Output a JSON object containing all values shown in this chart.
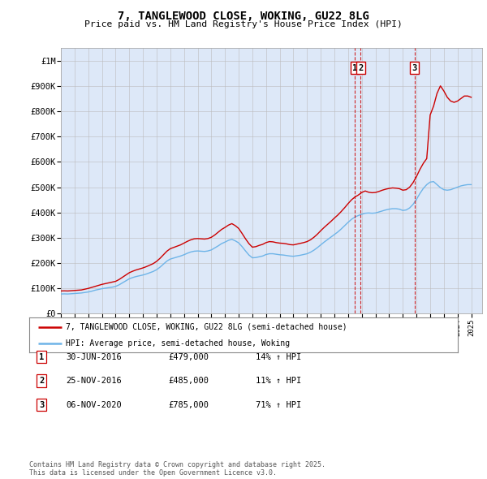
{
  "title": "7, TANGLEWOOD CLOSE, WOKING, GU22 8LG",
  "subtitle": "Price paid vs. HM Land Registry's House Price Index (HPI)",
  "hpi_color": "#6eb4e8",
  "price_color": "#cc0000",
  "annotation_color": "#cc0000",
  "background_color": "#dde8f8",
  "ylim": [
    0,
    1050000
  ],
  "yticks": [
    0,
    100000,
    200000,
    300000,
    400000,
    500000,
    600000,
    700000,
    800000,
    900000,
    1000000
  ],
  "ylabel_map": [
    "£0",
    "£100K",
    "£200K",
    "£300K",
    "£400K",
    "£500K",
    "£600K",
    "£700K",
    "£800K",
    "£900K",
    "£1M"
  ],
  "xlim_start": 1995.0,
  "xlim_end": 2025.8,
  "legend_house": "7, TANGLEWOOD CLOSE, WOKING, GU22 8LG (semi-detached house)",
  "legend_hpi": "HPI: Average price, semi-detached house, Woking",
  "transactions": [
    {
      "label": "1",
      "date": "30-JUN-2016",
      "price": "£479,000",
      "hpi": "14% ↑ HPI",
      "x": 2016.5
    },
    {
      "label": "2",
      "date": "25-NOV-2016",
      "price": "£485,000",
      "hpi": "11% ↑ HPI",
      "x": 2016.92
    },
    {
      "label": "3",
      "date": "06-NOV-2020",
      "price": "£785,000",
      "hpi": "71% ↑ HPI",
      "x": 2020.85
    }
  ],
  "footer": "Contains HM Land Registry data © Crown copyright and database right 2025.\nThis data is licensed under the Open Government Licence v3.0.",
  "hpi_data_x": [
    1995.0,
    1995.25,
    1995.5,
    1995.75,
    1996.0,
    1996.25,
    1996.5,
    1996.75,
    1997.0,
    1997.25,
    1997.5,
    1997.75,
    1998.0,
    1998.25,
    1998.5,
    1998.75,
    1999.0,
    1999.25,
    1999.5,
    1999.75,
    2000.0,
    2000.25,
    2000.5,
    2000.75,
    2001.0,
    2001.25,
    2001.5,
    2001.75,
    2002.0,
    2002.25,
    2002.5,
    2002.75,
    2003.0,
    2003.25,
    2003.5,
    2003.75,
    2004.0,
    2004.25,
    2004.5,
    2004.75,
    2005.0,
    2005.25,
    2005.5,
    2005.75,
    2006.0,
    2006.25,
    2006.5,
    2006.75,
    2007.0,
    2007.25,
    2007.5,
    2007.75,
    2008.0,
    2008.25,
    2008.5,
    2008.75,
    2009.0,
    2009.25,
    2009.5,
    2009.75,
    2010.0,
    2010.25,
    2010.5,
    2010.75,
    2011.0,
    2011.25,
    2011.5,
    2011.75,
    2012.0,
    2012.25,
    2012.5,
    2012.75,
    2013.0,
    2013.25,
    2013.5,
    2013.75,
    2014.0,
    2014.25,
    2014.5,
    2014.75,
    2015.0,
    2015.25,
    2015.5,
    2015.75,
    2016.0,
    2016.25,
    2016.5,
    2016.75,
    2017.0,
    2017.25,
    2017.5,
    2017.75,
    2018.0,
    2018.25,
    2018.5,
    2018.75,
    2019.0,
    2019.25,
    2019.5,
    2019.75,
    2020.0,
    2020.25,
    2020.5,
    2020.75,
    2021.0,
    2021.25,
    2021.5,
    2021.75,
    2022.0,
    2022.25,
    2022.5,
    2022.75,
    2023.0,
    2023.25,
    2023.5,
    2023.75,
    2024.0,
    2024.25,
    2024.5,
    2024.75,
    2025.0
  ],
  "hpi_data_y": [
    78000,
    78500,
    78000,
    79000,
    80000,
    81000,
    82000,
    84000,
    86000,
    89000,
    93000,
    96000,
    99000,
    101000,
    103000,
    105000,
    108000,
    114000,
    122000,
    130000,
    138000,
    143000,
    147000,
    150000,
    153000,
    157000,
    162000,
    167000,
    174000,
    184000,
    196000,
    208000,
    216000,
    220000,
    224000,
    228000,
    233000,
    239000,
    244000,
    247000,
    248000,
    247000,
    246000,
    248000,
    252000,
    260000,
    268000,
    277000,
    283000,
    290000,
    294000,
    288000,
    280000,
    265000,
    248000,
    232000,
    221000,
    222000,
    225000,
    228000,
    234000,
    237000,
    237000,
    235000,
    233000,
    232000,
    230000,
    228000,
    227000,
    229000,
    231000,
    234000,
    237000,
    243000,
    251000,
    261000,
    272000,
    283000,
    293000,
    303000,
    313000,
    323000,
    335000,
    348000,
    361000,
    373000,
    382000,
    388000,
    393000,
    397000,
    398000,
    397000,
    398000,
    402000,
    406000,
    410000,
    413000,
    415000,
    415000,
    413000,
    408000,
    410000,
    418000,
    432000,
    452000,
    475000,
    495000,
    510000,
    520000,
    522000,
    510000,
    498000,
    490000,
    488000,
    490000,
    495000,
    500000,
    505000,
    508000,
    510000,
    510000
  ],
  "price_data_x": [
    1995.0,
    1995.25,
    1995.5,
    1995.75,
    1996.0,
    1996.25,
    1996.5,
    1996.75,
    1997.0,
    1997.25,
    1997.5,
    1997.75,
    1998.0,
    1998.25,
    1998.5,
    1998.75,
    1999.0,
    1999.25,
    1999.5,
    1999.75,
    2000.0,
    2000.25,
    2000.5,
    2000.75,
    2001.0,
    2001.25,
    2001.5,
    2001.75,
    2002.0,
    2002.25,
    2002.5,
    2002.75,
    2003.0,
    2003.25,
    2003.5,
    2003.75,
    2004.0,
    2004.25,
    2004.5,
    2004.75,
    2005.0,
    2005.25,
    2005.5,
    2005.75,
    2006.0,
    2006.25,
    2006.5,
    2006.75,
    2007.0,
    2007.25,
    2007.5,
    2007.75,
    2008.0,
    2008.25,
    2008.5,
    2008.75,
    2009.0,
    2009.25,
    2009.5,
    2009.75,
    2010.0,
    2010.25,
    2010.5,
    2010.75,
    2011.0,
    2011.25,
    2011.5,
    2011.75,
    2012.0,
    2012.25,
    2012.5,
    2012.75,
    2013.0,
    2013.25,
    2013.5,
    2013.75,
    2014.0,
    2014.25,
    2014.5,
    2014.75,
    2015.0,
    2015.25,
    2015.5,
    2015.75,
    2016.0,
    2016.25,
    2016.5,
    2016.75,
    2017.0,
    2017.25,
    2017.5,
    2017.75,
    2018.0,
    2018.25,
    2018.5,
    2018.75,
    2019.0,
    2019.25,
    2019.5,
    2019.75,
    2020.0,
    2020.25,
    2020.5,
    2020.75,
    2021.0,
    2021.25,
    2021.5,
    2021.75,
    2022.0,
    2022.25,
    2022.5,
    2022.75,
    2023.0,
    2023.25,
    2023.5,
    2023.75,
    2024.0,
    2024.25,
    2024.5,
    2024.75,
    2025.0
  ],
  "price_data_y": [
    90000,
    90500,
    90000,
    91000,
    92000,
    93000,
    94000,
    97000,
    100000,
    104000,
    108000,
    112000,
    116000,
    119000,
    122000,
    125000,
    128000,
    135000,
    144000,
    153000,
    162000,
    168000,
    173000,
    177000,
    181000,
    186000,
    192000,
    198000,
    207000,
    219000,
    233000,
    247000,
    257000,
    262000,
    267000,
    272000,
    279000,
    286000,
    292000,
    296000,
    297000,
    296000,
    295000,
    297000,
    302000,
    311000,
    322000,
    333000,
    341000,
    350000,
    356000,
    348000,
    337000,
    317000,
    296000,
    277000,
    263000,
    265000,
    270000,
    274000,
    281000,
    285000,
    284000,
    281000,
    279000,
    278000,
    276000,
    273000,
    272000,
    275000,
    278000,
    281000,
    285000,
    292000,
    302000,
    314000,
    328000,
    341000,
    353000,
    365000,
    378000,
    390000,
    404000,
    419000,
    435000,
    450000,
    461000,
    469000,
    479000,
    485000,
    480000,
    478000,
    479000,
    483000,
    488000,
    492000,
    495000,
    497000,
    496000,
    494000,
    488000,
    490000,
    500000,
    518000,
    542000,
    570000,
    594000,
    613000,
    785000,
    820000,
    870000,
    900000,
    880000,
    855000,
    840000,
    835000,
    840000,
    850000,
    860000,
    860000,
    855000
  ]
}
